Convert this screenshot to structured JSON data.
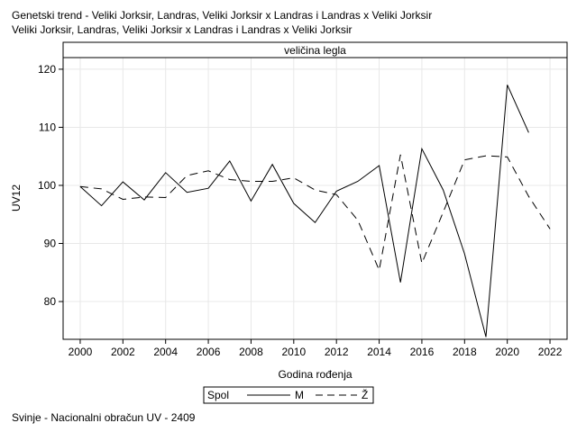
{
  "header": {
    "title_line1": "Genetski trend - Veliki Jorksir, Landras, Veliki Jorksir x Landras i Landras x Veliki Jorksir",
    "title_line2": "Veliki Jorksir, Landras, Veliki Jorksir x Landras i Landras x Veliki Jorksir"
  },
  "footer": {
    "text": "Svinje - Nacionalni obračun UV - 2409"
  },
  "chart_data": {
    "type": "line",
    "panel_title": "veličina legla",
    "xlabel": "Godina rođenja",
    "ylabel": "UV12",
    "xlim": [
      1999.2,
      2022.8
    ],
    "ylim": [
      73.5,
      122
    ],
    "x_ticks": [
      2000,
      2002,
      2004,
      2006,
      2008,
      2010,
      2012,
      2014,
      2016,
      2018,
      2020,
      2022
    ],
    "y_ticks": [
      80,
      90,
      100,
      110,
      120
    ],
    "grid": true,
    "legend": {
      "title": "Spol",
      "placement": "bottom-center"
    },
    "series": [
      {
        "name": "M",
        "style": "solid",
        "x": [
          2000,
          2001,
          2002,
          2003,
          2004,
          2005,
          2006,
          2007,
          2008,
          2009,
          2010,
          2011,
          2012,
          2013,
          2014,
          2015,
          2016,
          2017,
          2018,
          2019,
          2020,
          2021
        ],
        "y": [
          99.8,
          96.5,
          100.6,
          97.5,
          102.2,
          98.8,
          99.5,
          104.2,
          97.3,
          103.6,
          96.9,
          93.6,
          99.0,
          100.7,
          103.4,
          83.3,
          106.3,
          99.2,
          88.2,
          73.9,
          117.3,
          109.1
        ]
      },
      {
        "name": "Ž",
        "style": "dashed",
        "x": [
          2000,
          2001,
          2002,
          2003,
          2004,
          2005,
          2006,
          2007,
          2008,
          2009,
          2010,
          2011,
          2012,
          2013,
          2014,
          2015,
          2016,
          2017,
          2018,
          2019,
          2020,
          2021,
          2022
        ],
        "y": [
          99.8,
          99.4,
          97.6,
          98.0,
          97.9,
          101.7,
          102.5,
          101.0,
          100.7,
          100.7,
          101.3,
          99.2,
          98.4,
          94.0,
          85.4,
          105.3,
          86.6,
          95.4,
          104.4,
          105.1,
          104.9,
          98.1,
          92.5
        ]
      }
    ]
  }
}
